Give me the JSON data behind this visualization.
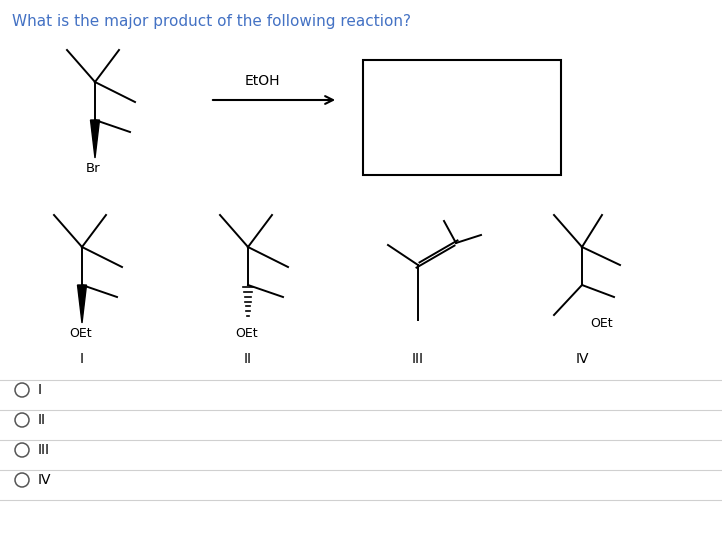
{
  "title": "What is the major product of the following reaction?",
  "title_color": "#4472c4",
  "title_fontsize": 11,
  "background_color": "#ffffff",
  "etoh_label": "EtOH",
  "radio_labels": [
    "I",
    "II",
    "III",
    "IV"
  ]
}
